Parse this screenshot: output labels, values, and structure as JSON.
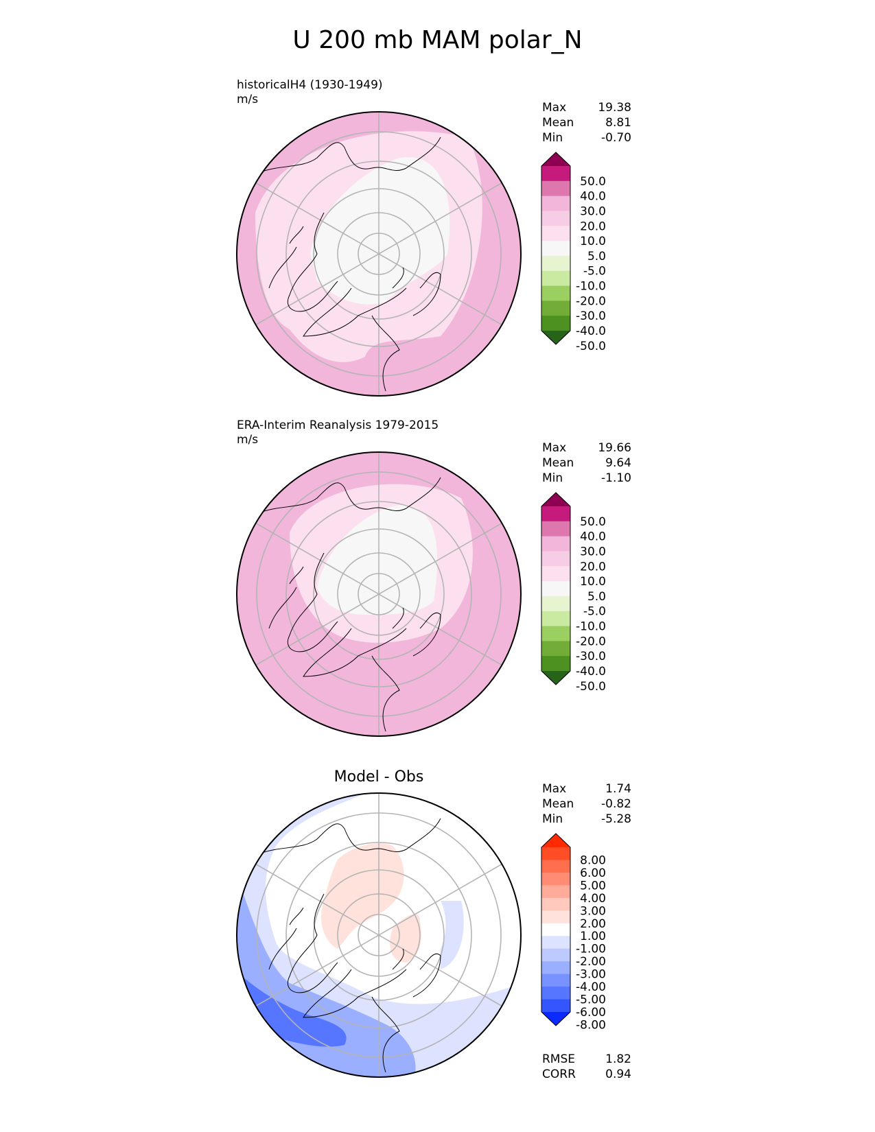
{
  "title": "U 200 mb MAM polar_N",
  "panels": [
    {
      "label_line1": "historicalH4 (1930-1949)",
      "label_line2": "m/s",
      "stats": [
        {
          "name": "Max",
          "value": "19.38"
        },
        {
          "name": "Mean",
          "value": "8.81"
        },
        {
          "name": "Min",
          "value": "-0.70"
        }
      ],
      "colorbar": {
        "labels": [
          "50.0",
          "40.0",
          "30.0",
          "20.0",
          "10.0",
          "5.0",
          "-5.0",
          "-10.0",
          "-20.0",
          "-30.0",
          "-40.0",
          "-50.0"
        ],
        "colors": [
          "#8e0152",
          "#c51b7d",
          "#de77ae",
          "#f1b6da",
          "#f7cde6",
          "#fde0ef",
          "#f7f7f7",
          "#e6f5d0",
          "#c9eaa0",
          "#9ccf61",
          "#72ad37",
          "#4d9221",
          "#276419"
        ]
      }
    },
    {
      "label_line1": "ERA-Interim Reanalysis 1979-2015",
      "label_line2": "m/s",
      "stats": [
        {
          "name": "Max",
          "value": "19.66"
        },
        {
          "name": "Mean",
          "value": "9.64"
        },
        {
          "name": "Min",
          "value": "-1.10"
        }
      ],
      "colorbar": {
        "labels": [
          "50.0",
          "40.0",
          "30.0",
          "20.0",
          "10.0",
          "5.0",
          "-5.0",
          "-10.0",
          "-20.0",
          "-30.0",
          "-40.0",
          "-50.0"
        ],
        "colors": [
          "#8e0152",
          "#c51b7d",
          "#de77ae",
          "#f1b6da",
          "#f7cde6",
          "#fde0ef",
          "#f7f7f7",
          "#e6f5d0",
          "#c9eaa0",
          "#9ccf61",
          "#72ad37",
          "#4d9221",
          "#276419"
        ]
      }
    },
    {
      "title": "Model - Obs",
      "stats": [
        {
          "name": "Max",
          "value": "1.74"
        },
        {
          "name": "Mean",
          "value": "-0.82"
        },
        {
          "name": "Min",
          "value": "-5.28"
        }
      ],
      "colorbar": {
        "labels": [
          "8.00",
          "6.00",
          "5.00",
          "4.00",
          "3.00",
          "2.00",
          "1.00",
          "-1.00",
          "-2.00",
          "-3.00",
          "-4.00",
          "-5.00",
          "-6.00",
          "-8.00"
        ],
        "colors": [
          "#ff2a00",
          "#ff4d26",
          "#ff6e4d",
          "#ff8c73",
          "#ffab99",
          "#ffc9bd",
          "#ffe2db",
          "#ffffff",
          "#dde3ff",
          "#bccaff",
          "#9aafff",
          "#7892ff",
          "#5676ff",
          "#3356ff",
          "#0a2aff"
        ]
      },
      "extra_stats": [
        {
          "name": "RMSE",
          "value": "1.82"
        },
        {
          "name": "CORR",
          "value": "0.94"
        }
      ]
    }
  ]
}
